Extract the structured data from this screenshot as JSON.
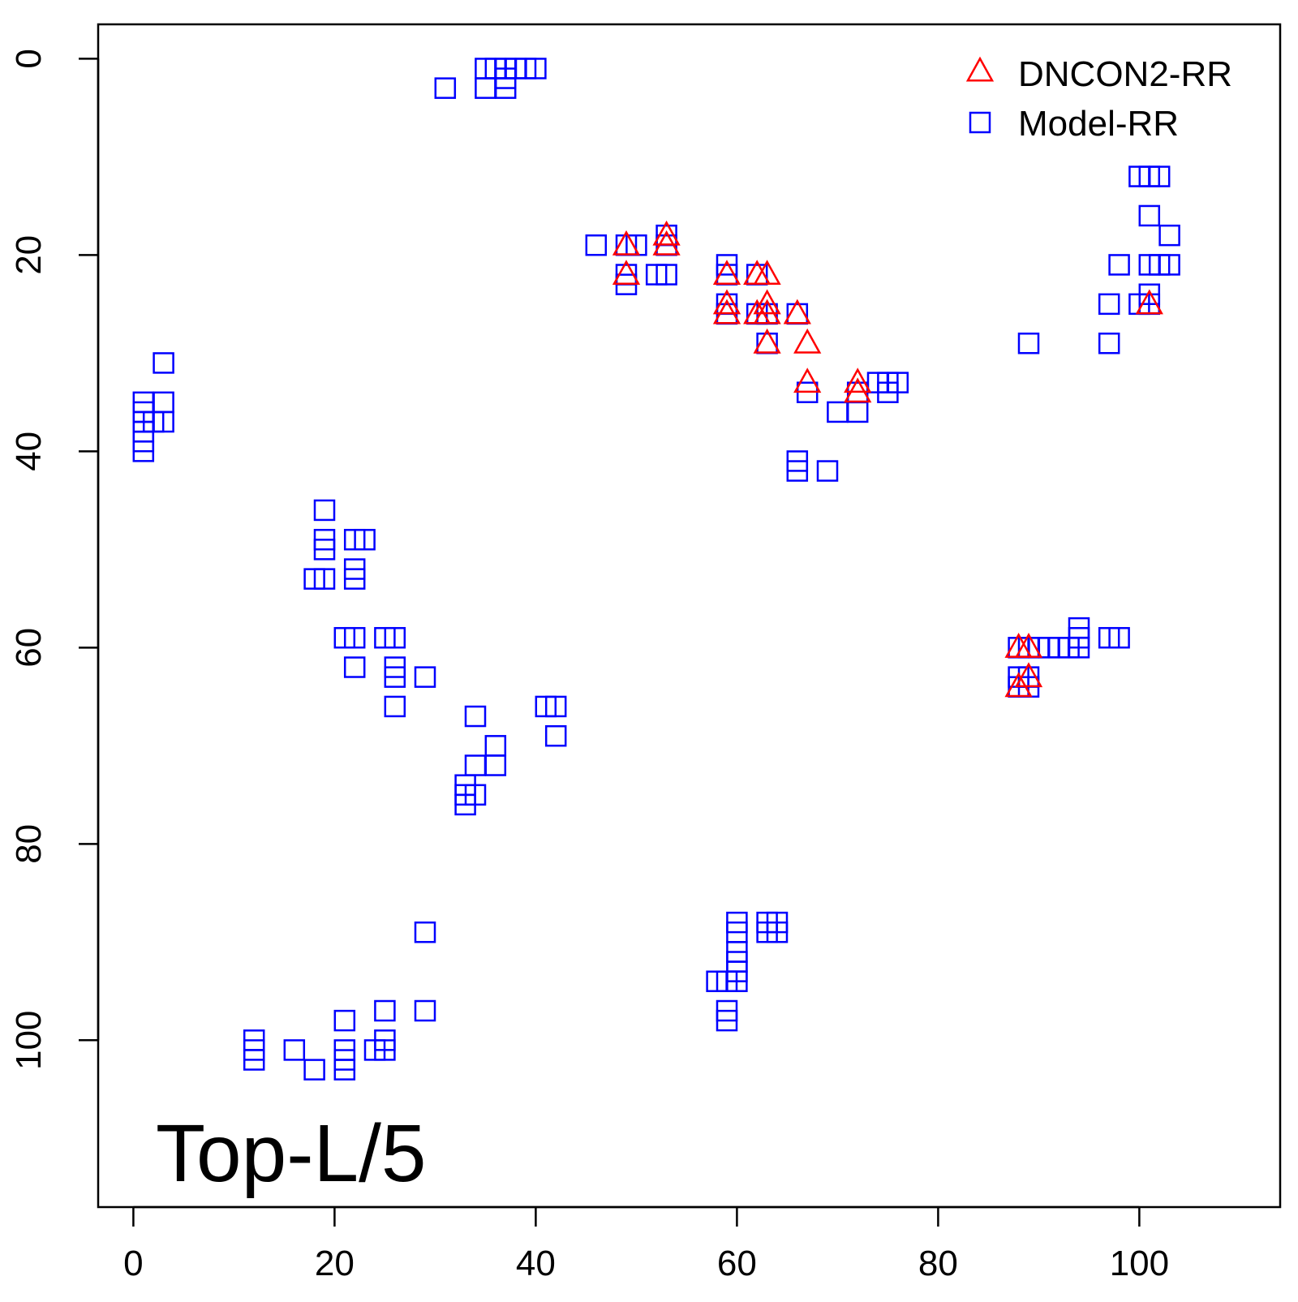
{
  "chart_data": {
    "type": "scatter",
    "title": "",
    "xlabel": "",
    "ylabel": "",
    "annotation": "Top-L/5",
    "xlim": [
      -3.5,
      114
    ],
    "ylim": [
      -3.5,
      117
    ],
    "y_inverted": true,
    "grid": false,
    "legend_position": "top-right",
    "x_ticks": [
      0,
      20,
      40,
      60,
      80,
      100
    ],
    "y_ticks": [
      0,
      20,
      40,
      60,
      80,
      100
    ],
    "series": [
      {
        "name": "DNCON2-RR",
        "marker": "triangle",
        "color": "#ff0000",
        "points": [
          [
            49,
            19
          ],
          [
            49,
            22
          ],
          [
            53,
            18
          ],
          [
            53,
            19
          ],
          [
            59,
            22
          ],
          [
            59,
            25
          ],
          [
            59,
            26
          ],
          [
            62,
            22
          ],
          [
            63,
            22
          ],
          [
            62,
            26
          ],
          [
            63,
            25
          ],
          [
            63,
            26
          ],
          [
            63,
            29
          ],
          [
            66,
            26
          ],
          [
            67,
            29
          ],
          [
            67,
            33
          ],
          [
            72,
            33
          ],
          [
            72,
            34
          ],
          [
            88,
            60
          ],
          [
            89,
            60
          ],
          [
            88,
            64
          ],
          [
            89,
            63
          ],
          [
            101,
            25
          ]
        ]
      },
      {
        "name": "Model-RR",
        "marker": "square",
        "color": "#0000ff",
        "points": [
          [
            1,
            35
          ],
          [
            1,
            36
          ],
          [
            1,
            37
          ],
          [
            1,
            38
          ],
          [
            1,
            39
          ],
          [
            1,
            40
          ],
          [
            2,
            37
          ],
          [
            3,
            31
          ],
          [
            3,
            35
          ],
          [
            3,
            37
          ],
          [
            31,
            3
          ],
          [
            35,
            1
          ],
          [
            35,
            3
          ],
          [
            36,
            1
          ],
          [
            37,
            1
          ],
          [
            37,
            2
          ],
          [
            37,
            3
          ],
          [
            38,
            1
          ],
          [
            39,
            1
          ],
          [
            40,
            1
          ],
          [
            19,
            46
          ],
          [
            19,
            49
          ],
          [
            19,
            50
          ],
          [
            18,
            53
          ],
          [
            19,
            53
          ],
          [
            22,
            49
          ],
          [
            23,
            49
          ],
          [
            22,
            52
          ],
          [
            22,
            53
          ],
          [
            21,
            59
          ],
          [
            22,
            59
          ],
          [
            22,
            62
          ],
          [
            25,
            59
          ],
          [
            26,
            59
          ],
          [
            26,
            62
          ],
          [
            26,
            63
          ],
          [
            26,
            66
          ],
          [
            29,
            63
          ],
          [
            34,
            67
          ],
          [
            36,
            70
          ],
          [
            36,
            72
          ],
          [
            34,
            72
          ],
          [
            33,
            74
          ],
          [
            33,
            75
          ],
          [
            33,
            76
          ],
          [
            34,
            75
          ],
          [
            41,
            66
          ],
          [
            42,
            66
          ],
          [
            42,
            69
          ],
          [
            46,
            19
          ],
          [
            49,
            19
          ],
          [
            49,
            22
          ],
          [
            49,
            23
          ],
          [
            50,
            19
          ],
          [
            52,
            22
          ],
          [
            53,
            22
          ],
          [
            53,
            18
          ],
          [
            53,
            19
          ],
          [
            59,
            21
          ],
          [
            59,
            22
          ],
          [
            59,
            25
          ],
          [
            59,
            26
          ],
          [
            62,
            22
          ],
          [
            62,
            26
          ],
          [
            63,
            26
          ],
          [
            63,
            29
          ],
          [
            66,
            26
          ],
          [
            67,
            34
          ],
          [
            66,
            41
          ],
          [
            66,
            42
          ],
          [
            69,
            42
          ],
          [
            70,
            36
          ],
          [
            72,
            36
          ],
          [
            72,
            34
          ],
          [
            74,
            33
          ],
          [
            75,
            33
          ],
          [
            75,
            34
          ],
          [
            76,
            33
          ],
          [
            58,
            94
          ],
          [
            59,
            94
          ],
          [
            59,
            97
          ],
          [
            59,
            98
          ],
          [
            60,
            88
          ],
          [
            60,
            89
          ],
          [
            60,
            91
          ],
          [
            60,
            92
          ],
          [
            60,
            93
          ],
          [
            60,
            94
          ],
          [
            63,
            88
          ],
          [
            63,
            89
          ],
          [
            64,
            88
          ],
          [
            64,
            89
          ],
          [
            12,
            100
          ],
          [
            12,
            101
          ],
          [
            12,
            102
          ],
          [
            16,
            101
          ],
          [
            18,
            103
          ],
          [
            21,
            98
          ],
          [
            21,
            101
          ],
          [
            21,
            102
          ],
          [
            21,
            103
          ],
          [
            24,
            101
          ],
          [
            25,
            97
          ],
          [
            25,
            100
          ],
          [
            25,
            101
          ],
          [
            29,
            89
          ],
          [
            29,
            97
          ],
          [
            88,
            60
          ],
          [
            88,
            63
          ],
          [
            88,
            64
          ],
          [
            89,
            60
          ],
          [
            89,
            63
          ],
          [
            89,
            64
          ],
          [
            90,
            60
          ],
          [
            91,
            60
          ],
          [
            92,
            60
          ],
          [
            93,
            60
          ],
          [
            94,
            58
          ],
          [
            94,
            59
          ],
          [
            94,
            60
          ],
          [
            97,
            59
          ],
          [
            98,
            59
          ],
          [
            89,
            29
          ],
          [
            97,
            25
          ],
          [
            97,
            29
          ],
          [
            98,
            21
          ],
          [
            100,
            12
          ],
          [
            101,
            12
          ],
          [
            102,
            12
          ],
          [
            101,
            16
          ],
          [
            103,
            18
          ],
          [
            101,
            21
          ],
          [
            102,
            21
          ],
          [
            103,
            21
          ],
          [
            101,
            24
          ],
          [
            100,
            25
          ],
          [
            101,
            25
          ]
        ]
      }
    ]
  }
}
